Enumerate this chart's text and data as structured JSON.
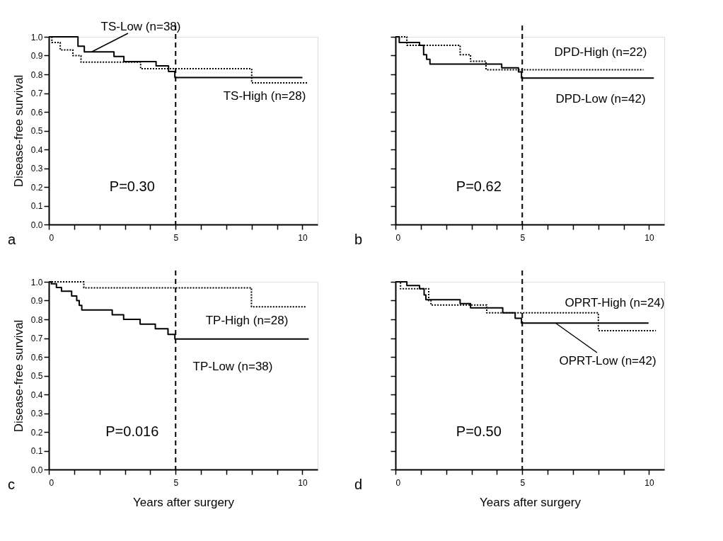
{
  "chart_data": [
    {
      "type": "step",
      "ylabel": "Disease-free survival",
      "annotations": [
        "P=0.30",
        "a"
      ],
      "xlim": [
        0,
        10.6
      ],
      "xticks": [
        0,
        {
          "value": 1,
          "label": null
        },
        {
          "value": 2,
          "label": null
        },
        {
          "value": 3,
          "label": null
        },
        {
          "value": 4,
          "label": null
        },
        5,
        {
          "value": 6,
          "label": null
        },
        {
          "value": 7,
          "label": null
        },
        {
          "value": 8,
          "label": null
        },
        {
          "value": 9,
          "label": null
        },
        10
      ],
      "ylim": [
        0,
        1
      ],
      "yticks": [
        {
          "value": 0,
          "label": "0.0"
        },
        0.1,
        0.2,
        0.3,
        0.4,
        0.5,
        0.6,
        0.7,
        0.8,
        0.9,
        {
          "value": 1,
          "label": "1.0"
        }
      ],
      "ref_lines": [
        {
          "axis": "x",
          "value": 5,
          "line_style": "dashed"
        }
      ],
      "grid": false,
      "legend": false,
      "marker": "none",
      "series": [
        {
          "name": "TS-Low (n=38)",
          "color": "#000000",
          "line_style": "solid",
          "x": [
            0,
            1.15,
            1.4,
            2.57,
            2.96,
            4.23,
            4.72,
            4.97,
            10.0
          ],
          "values": [
            1.0,
            0.95,
            0.92,
            0.895,
            0.868,
            0.845,
            0.815,
            0.783,
            0.783
          ]
        },
        {
          "name": "TS-High (n=28)",
          "color": "#000000",
          "line_style": "dotted",
          "x": [
            0,
            0.12,
            0.45,
            0.95,
            1.27,
            3.62,
            8.0,
            10.23
          ],
          "values": [
            1.0,
            0.97,
            0.93,
            0.9,
            0.865,
            0.83,
            0.755,
            0.755
          ]
        }
      ]
    },
    {
      "type": "step",
      "annotations": [
        "P=0.62",
        "b"
      ],
      "tick_labels": "x",
      "xlim": [
        0,
        10.6
      ],
      "xticks": [
        0,
        {
          "value": 1,
          "label": null
        },
        {
          "value": 2,
          "label": null
        },
        {
          "value": 3,
          "label": null
        },
        {
          "value": 4,
          "label": null
        },
        5,
        {
          "value": 6,
          "label": null
        },
        {
          "value": 7,
          "label": null
        },
        {
          "value": 8,
          "label": null
        },
        {
          "value": 9,
          "label": null
        },
        10
      ],
      "ylim": [
        0,
        1
      ],
      "yticks": [
        {
          "value": 0,
          "label": null
        },
        {
          "value": 0.1,
          "label": null
        },
        {
          "value": 0.2,
          "label": null
        },
        {
          "value": 0.3,
          "label": null
        },
        {
          "value": 0.4,
          "label": null
        },
        {
          "value": 0.5,
          "label": null
        },
        {
          "value": 0.6,
          "label": null
        },
        {
          "value": 0.7,
          "label": null
        },
        {
          "value": 0.8,
          "label": null
        },
        {
          "value": 0.9,
          "label": null
        },
        {
          "value": 1,
          "label": null
        }
      ],
      "ref_lines": [
        {
          "axis": "x",
          "value": 5,
          "line_style": "dashed"
        }
      ],
      "grid": false,
      "legend": false,
      "marker": "none",
      "series": [
        {
          "name": "DPD-High (n=22)",
          "color": "#000000",
          "line_style": "dotted",
          "x": [
            0,
            0.45,
            2.55,
            2.96,
            3.57,
            9.78
          ],
          "values": [
            1.0,
            0.955,
            0.905,
            0.87,
            0.825,
            0.825
          ]
        },
        {
          "name": "DPD-Low (n=42)",
          "color": "#000000",
          "line_style": "solid",
          "x": [
            0,
            0.15,
            0.95,
            1.11,
            1.23,
            1.36,
            4.19,
            4.85,
            4.97,
            10.19
          ],
          "values": [
            1.0,
            0.97,
            0.955,
            0.905,
            0.88,
            0.855,
            0.835,
            0.813,
            0.78,
            0.78
          ]
        }
      ]
    },
    {
      "type": "step",
      "ylabel": "Disease-free survival",
      "xlabel": "Years after surgery",
      "annotations": [
        "P=0.016",
        "c"
      ],
      "xlim": [
        0,
        10.6
      ],
      "xticks": [
        0,
        {
          "value": 1,
          "label": null
        },
        {
          "value": 2,
          "label": null
        },
        {
          "value": 3,
          "label": null
        },
        {
          "value": 4,
          "label": null
        },
        5,
        {
          "value": 6,
          "label": null
        },
        {
          "value": 7,
          "label": null
        },
        {
          "value": 8,
          "label": null
        },
        {
          "value": 9,
          "label": null
        },
        10
      ],
      "ylim": [
        0,
        1
      ],
      "yticks": [
        {
          "value": 0,
          "label": "0.0"
        },
        0.1,
        0.2,
        0.3,
        0.4,
        0.5,
        0.6,
        0.7,
        0.8,
        0.9,
        {
          "value": 1,
          "label": "1.0"
        }
      ],
      "ref_lines": [
        {
          "axis": "x",
          "value": 5,
          "line_style": "dashed"
        }
      ],
      "grid": false,
      "legend": false,
      "marker": "none",
      "series": [
        {
          "name": "TP-High (n=28)",
          "color": "#000000",
          "line_style": "dotted",
          "x": [
            0,
            1.38,
            7.99,
            10.16
          ],
          "values": [
            1.0,
            0.968,
            0.867,
            0.867
          ]
        },
        {
          "name": "TP-Low (n=38)",
          "color": "#000000",
          "line_style": "solid",
          "x": [
            0,
            0.1,
            0.3,
            0.5,
            0.9,
            1.1,
            1.2,
            1.3,
            2.5,
            2.95,
            3.6,
            4.2,
            4.7,
            4.97,
            10.25
          ],
          "values": [
            1.0,
            0.99,
            0.97,
            0.95,
            0.925,
            0.9,
            0.875,
            0.85,
            0.825,
            0.8,
            0.775,
            0.75,
            0.72,
            0.695,
            0.695
          ]
        }
      ]
    },
    {
      "type": "step",
      "xlabel": "Years after surgery",
      "annotations": [
        "P=0.50",
        "d"
      ],
      "tick_labels": "x",
      "xlim": [
        0,
        10.6
      ],
      "xticks": [
        0,
        {
          "value": 1,
          "label": null
        },
        {
          "value": 2,
          "label": null
        },
        {
          "value": 3,
          "label": null
        },
        {
          "value": 4,
          "label": null
        },
        5,
        {
          "value": 6,
          "label": null
        },
        {
          "value": 7,
          "label": null
        },
        {
          "value": 8,
          "label": null
        },
        {
          "value": 9,
          "label": null
        },
        10
      ],
      "ylim": [
        0,
        1
      ],
      "yticks": [
        {
          "value": 0,
          "label": null
        },
        {
          "value": 0.1,
          "label": null
        },
        {
          "value": 0.2,
          "label": null
        },
        {
          "value": 0.3,
          "label": null
        },
        {
          "value": 0.4,
          "label": null
        },
        {
          "value": 0.5,
          "label": null
        },
        {
          "value": 0.6,
          "label": null
        },
        {
          "value": 0.7,
          "label": null
        },
        {
          "value": 0.8,
          "label": null
        },
        {
          "value": 0.9,
          "label": null
        },
        {
          "value": 1,
          "label": null
        }
      ],
      "ref_lines": [
        {
          "axis": "x",
          "value": 5,
          "line_style": "dashed"
        }
      ],
      "grid": false,
      "legend": false,
      "marker": "none",
      "series": [
        {
          "name": "OPRT-High (n=24)",
          "color": "#000000",
          "line_style": "dotted",
          "x": [
            0,
            0.2,
            1.31,
            1.4,
            3.6,
            8.0,
            10.27
          ],
          "values": [
            1.0,
            0.963,
            0.9,
            0.876,
            0.835,
            0.74,
            0.74
          ]
        },
        {
          "name": "OPRT-Low (n=42)",
          "color": "#000000",
          "line_style": "solid",
          "x": [
            0,
            0.45,
            0.95,
            1.13,
            1.2,
            2.55,
            2.96,
            4.23,
            4.72,
            4.97,
            9.98
          ],
          "values": [
            1.0,
            0.98,
            0.963,
            0.93,
            0.905,
            0.884,
            0.861,
            0.835,
            0.806,
            0.78,
            0.78
          ]
        }
      ]
    }
  ]
}
